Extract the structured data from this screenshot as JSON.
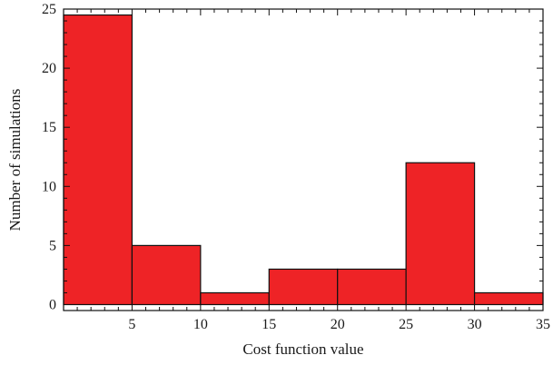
{
  "chart_data": {
    "type": "bar",
    "title": "",
    "xlabel": "Cost function value",
    "ylabel": "Number of simulations",
    "bins": [
      {
        "x0": 0,
        "x1": 5,
        "value": 24.5
      },
      {
        "x0": 5,
        "x1": 10,
        "value": 5
      },
      {
        "x0": 10,
        "x1": 15,
        "value": 1
      },
      {
        "x0": 15,
        "x1": 20,
        "value": 3
      },
      {
        "x0": 20,
        "x1": 25,
        "value": 3
      },
      {
        "x0": 25,
        "x1": 30,
        "value": 12
      },
      {
        "x0": 30,
        "x1": 35,
        "value": 1
      }
    ],
    "xlim": [
      0,
      35
    ],
    "ylim": [
      -0.5,
      25
    ],
    "xticks": [
      5,
      10,
      15,
      20,
      25,
      30,
      35
    ],
    "yticks": [
      0,
      5,
      10,
      15,
      20,
      25
    ],
    "grid": false,
    "bar_color": "#ee2326",
    "edge_color": "#111111"
  }
}
